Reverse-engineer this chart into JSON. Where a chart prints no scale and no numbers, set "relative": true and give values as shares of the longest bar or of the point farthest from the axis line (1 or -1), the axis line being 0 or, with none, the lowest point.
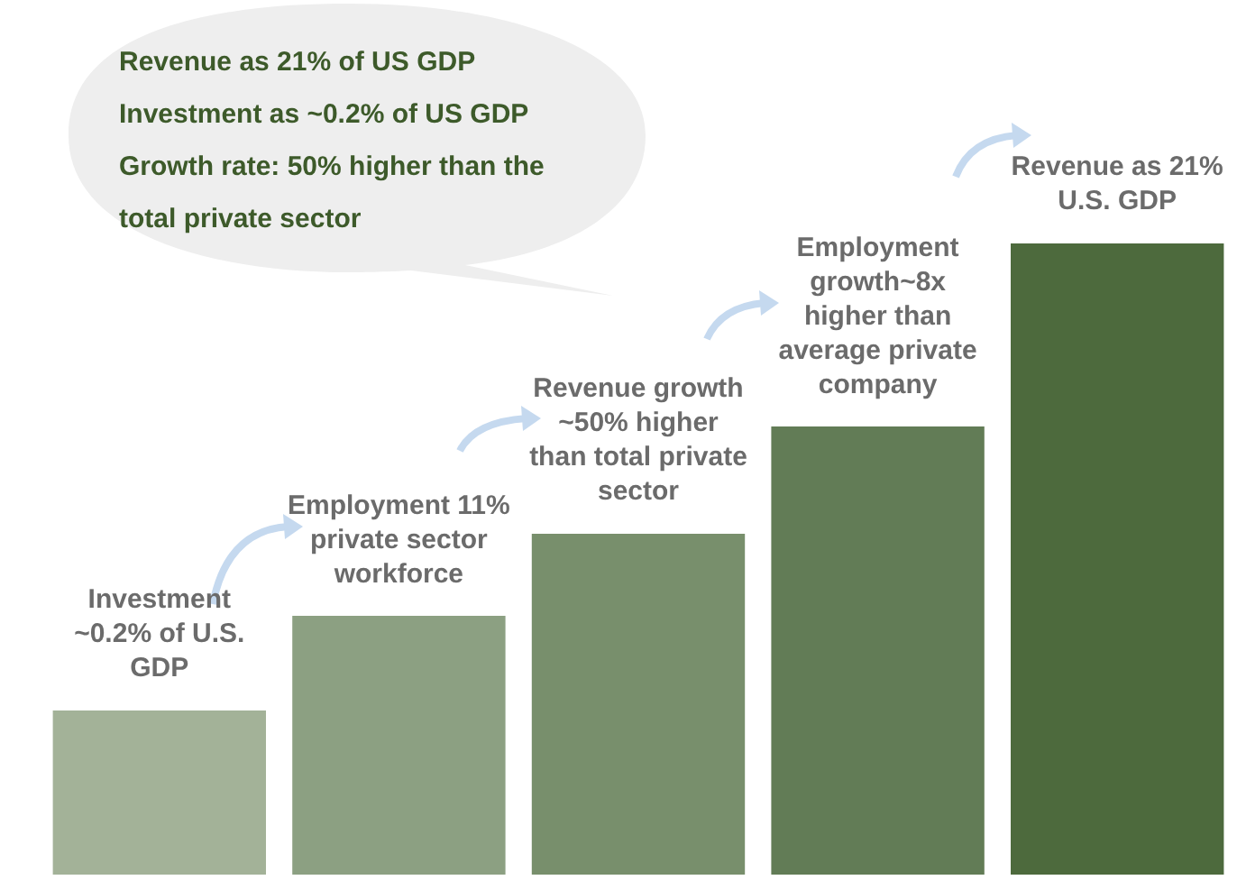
{
  "chart_data": {
    "type": "bar",
    "relative": true,
    "categories": [
      null,
      null,
      null,
      null,
      null
    ],
    "values": [
      0.26,
      0.41,
      0.54,
      0.71,
      1
    ],
    "colors": [
      "#a3b298",
      "#8ca082",
      "#788f6c",
      "#627c56",
      "#4d6a3d"
    ],
    "annotations": [
      "Revenue as 21% of US GDP",
      "Investment as ~0.2% of US GDP",
      "Growth rate: 50% higher than the total private sector",
      "Investment ~0.2% of U.S. GDP",
      "Employment 11% private sector workforce",
      "Revenue growth ~50% higher than total private sector",
      "Employment growth~8x higher than average private company",
      "Revenue as 21% U.S. GDP"
    ]
  }
}
